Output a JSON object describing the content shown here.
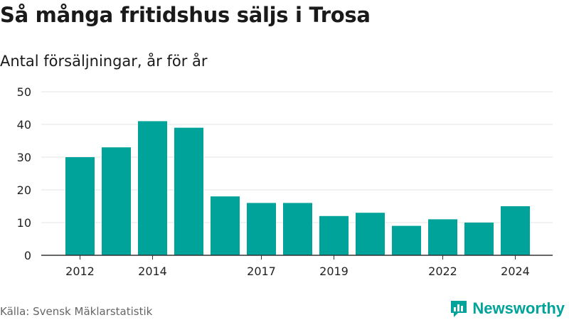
{
  "chart_data": {
    "type": "bar",
    "title": "Så många fritidshus säljs i Trosa",
    "subtitle": "Antal försäljningar, år för år",
    "categories": [
      "2012",
      "2013",
      "2014",
      "2015",
      "2016",
      "2017",
      "2018",
      "2019",
      "2020",
      "2021",
      "2022",
      "2023",
      "2024"
    ],
    "values": [
      30,
      33,
      41,
      39,
      18,
      16,
      16,
      12,
      13,
      9,
      11,
      10,
      15
    ],
    "x_tick_labels": [
      "2012",
      "2014",
      "2017",
      "2019",
      "2022",
      "2024"
    ],
    "y_ticks": [
      0,
      10,
      20,
      30,
      40,
      50
    ],
    "ylim": [
      0,
      50
    ],
    "grid": true,
    "bar_color": "#00a39a",
    "gridline_color": "#e6e6e6"
  },
  "footer": {
    "source": "Källa: Svensk Mäklarstatistik",
    "brand": "Newsworthy",
    "brand_icon": "newsworthy-logo-icon",
    "brand_color": "#00a39a"
  }
}
